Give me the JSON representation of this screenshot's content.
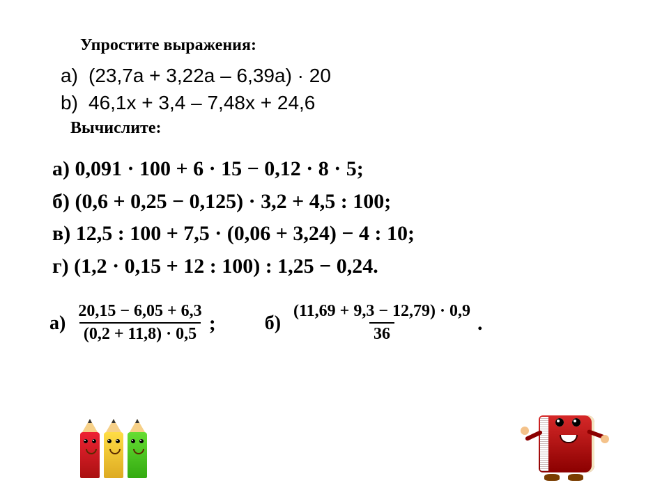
{
  "colors": {
    "text": "#000000",
    "background": "#ffffff",
    "pencil_red": "#e02323",
    "pencil_yellow": "#ffd644",
    "pencil_green": "#66dd33",
    "book_cover": "#d62828"
  },
  "fonts": {
    "heading_family": "Times New Roman",
    "heading_size_pt": 18,
    "heading_weight": "bold",
    "simplify_family": "Arial",
    "simplify_size_pt": 21,
    "compute_family": "Georgia",
    "compute_size_pt": 22,
    "compute_weight": "bold",
    "fraction_size_pt": 18
  },
  "headings": {
    "simplify": "Упростите выражения:",
    "compute": "Вычислите:"
  },
  "simplify": {
    "items": [
      {
        "marker": "a)",
        "expr": "(23,7а + 3,22а – 6,39а) · 20"
      },
      {
        "marker": "b)",
        "expr": "46,1х + 3,4 – 7,48х + 24,6"
      }
    ]
  },
  "compute": {
    "items": [
      {
        "marker": "а)",
        "expr": "0,091 · 100 + 6 · 15 − 0,12 · 8 · 5;"
      },
      {
        "marker": "б)",
        "expr": "(0,6 + 0,25 − 0,125) · 3,2 + 4,5 : 100;"
      },
      {
        "marker": "в)",
        "expr": "12,5 : 100 + 7,5 · (0,06 + 3,24) − 4 : 10;"
      },
      {
        "marker": "г)",
        "expr": "(1,2 · 0,15 + 12 : 100) : 1,25 − 0,24."
      }
    ]
  },
  "fractions": {
    "items": [
      {
        "marker": "а)",
        "numerator": "20,15 − 6,05 + 6,3",
        "denominator": "(0,2 + 11,8) · 0,5",
        "punct": ";"
      },
      {
        "marker": "б)",
        "numerator": "(11,69 + 9,3 − 12,79) · 0,9",
        "denominator": "36",
        "punct": "."
      }
    ]
  },
  "clipart": {
    "pencils": {
      "name": "three-colored-pencils",
      "colors": [
        "red",
        "yellow",
        "green"
      ]
    },
    "book": {
      "name": "smiling-red-book"
    }
  }
}
